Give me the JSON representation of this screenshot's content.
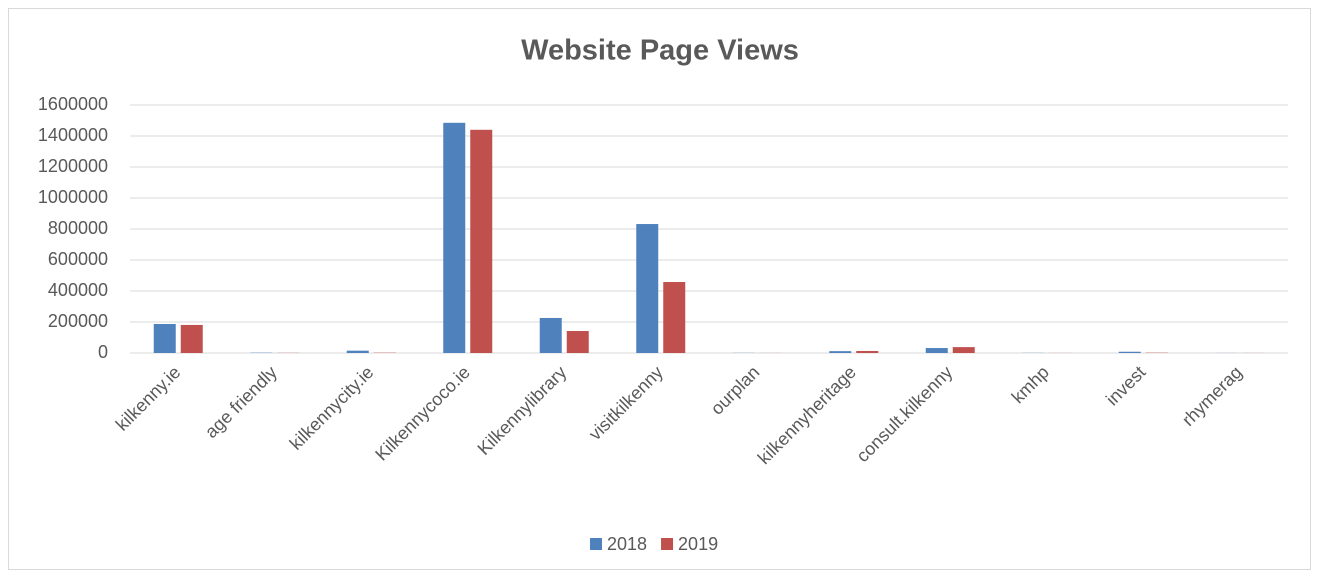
{
  "chart_data": {
    "type": "bar",
    "title": "Website Page Views",
    "categories": [
      "kilkenny.ie",
      "age friendly",
      "kilkennycity.ie",
      "Kilkennycoco.ie",
      "Kilkennylibrary",
      "visitkilkenny",
      "ourplan",
      "kilkennyheritage",
      "consult.kilkenny",
      "kmhp",
      "invest",
      "rhymerag"
    ],
    "series": [
      {
        "name": "2018",
        "color": "#4f81bd",
        "values": [
          187000,
          2000,
          15000,
          1485000,
          226000,
          832000,
          1000,
          12000,
          32000,
          1000,
          8000,
          500
        ]
      },
      {
        "name": "2019",
        "color": "#c0504d",
        "values": [
          181000,
          1000,
          2000,
          1440000,
          142000,
          458000,
          500,
          13000,
          38000,
          500,
          2000,
          500
        ]
      }
    ],
    "ylim": [
      0,
      1600000
    ],
    "yticks": [
      0,
      200000,
      400000,
      600000,
      800000,
      1000000,
      1200000,
      1400000,
      1600000
    ],
    "grid": true,
    "legend": "bottom"
  }
}
